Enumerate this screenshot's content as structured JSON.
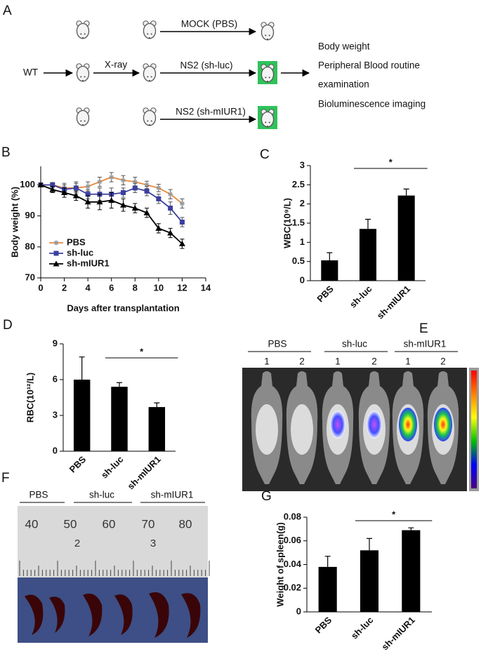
{
  "panel_labels": [
    "A",
    "B",
    "C",
    "D",
    "E",
    "F",
    "G"
  ],
  "diagram": {
    "start": "WT",
    "treatment": "X-ray",
    "groups": [
      "MOCK (PBS)",
      "NS2 (sh-luc)",
      "NS2 (sh-mIUR1)"
    ],
    "readouts": [
      "Body weight",
      "Peripheral Blood routine",
      "examination",
      "Bioluminescence imaging"
    ]
  },
  "imaging": {
    "groups": [
      {
        "label": "PBS",
        "mice": [
          "1",
          "2"
        ]
      },
      {
        "label": "sh-luc",
        "mice": [
          "1",
          "2"
        ]
      },
      {
        "label": "sh-mIUR1",
        "mice": [
          "1",
          "2"
        ]
      }
    ]
  },
  "spleen_photo": {
    "groups": [
      "PBS",
      "sh-luc",
      "sh-mIUR1"
    ],
    "ruler": [
      "40",
      "50",
      "60",
      "70",
      "80"
    ],
    "ruler_small": [
      "2",
      "3"
    ]
  },
  "chart_data": [
    {
      "type": "line",
      "ylabel": "Body weight (%)",
      "xlabel": "Days after transplantation",
      "x": [
        0,
        1,
        2,
        3,
        4,
        5,
        6,
        7,
        8,
        9,
        10,
        11,
        12
      ],
      "xlim": [
        0,
        14
      ],
      "xticks": [
        0,
        2,
        4,
        6,
        8,
        10,
        12,
        14
      ],
      "ylim": [
        70,
        106
      ],
      "yticks": [
        70,
        80,
        90,
        100
      ],
      "legend": "lower left",
      "grid": false,
      "series": [
        {
          "name": "PBS",
          "color": "#e8883a",
          "marker": "asterisk",
          "values": [
            100,
            100,
            99,
            99,
            99.5,
            101,
            102.5,
            101.5,
            101,
            100,
            99,
            97,
            94
          ],
          "errors": [
            0.5,
            0.8,
            1.5,
            1.5,
            1.5,
            1.5,
            1.5,
            1.5,
            1.5,
            1.2,
            1.2,
            1.5,
            1.5
          ]
        },
        {
          "name": "sh-luc",
          "color": "#3b3f9e",
          "marker": "square",
          "values": [
            100,
            100,
            98.5,
            99,
            97,
            97,
            97,
            97.5,
            99,
            98,
            95.5,
            92.5,
            88
          ],
          "errors": [
            0.5,
            0.8,
            1.5,
            2,
            1.5,
            2,
            2,
            1.5,
            1.5,
            1.5,
            1.5,
            2,
            1.5
          ]
        },
        {
          "name": "sh-mIUR1",
          "color": "#000000",
          "marker": "triangle",
          "values": [
            100,
            98.5,
            97.5,
            96.5,
            94.5,
            94.5,
            95,
            93.5,
            92.5,
            91,
            86,
            84.5,
            81
          ],
          "errors": [
            0.5,
            1,
            1.5,
            1.5,
            2,
            2.5,
            2.5,
            2,
            1.5,
            1.5,
            1.5,
            1.5,
            1.5
          ]
        }
      ]
    },
    {
      "type": "bar",
      "ylabel": "WBC(10⁹/L)",
      "categories": [
        "PBS",
        "sh-luc",
        "sh-mIUR1"
      ],
      "values": [
        0.53,
        1.35,
        2.22
      ],
      "errors": [
        0.2,
        0.25,
        0.17
      ],
      "color": "#000000",
      "ylim": [
        0,
        3
      ],
      "yticks": [
        0,
        0.5,
        1,
        1.5,
        2,
        2.5,
        3
      ],
      "significance": {
        "label": "*",
        "between": [
          "sh-luc",
          "sh-mIUR1"
        ]
      }
    },
    {
      "type": "bar",
      "ylabel": "RBC(10¹²/L)",
      "categories": [
        "PBS",
        "sh-luc",
        "sh-mIUR1"
      ],
      "values": [
        6.0,
        5.4,
        3.7
      ],
      "errors": [
        1.9,
        0.35,
        0.35
      ],
      "color": "#000000",
      "ylim": [
        0,
        9
      ],
      "yticks": [
        0,
        3,
        6,
        9
      ],
      "significance": {
        "label": "*",
        "between": [
          "sh-luc",
          "sh-mIUR1"
        ]
      }
    },
    {
      "type": "bar",
      "ylabel": "Weight of spleen(g)",
      "categories": [
        "PBS",
        "sh-luc",
        "sh-mIUR1"
      ],
      "values": [
        0.038,
        0.052,
        0.069
      ],
      "errors": [
        0.009,
        0.01,
        0.002
      ],
      "color": "#000000",
      "ylim": [
        0,
        0.08
      ],
      "yticks": [
        0,
        0.02,
        0.04,
        0.06,
        0.08
      ],
      "significance": {
        "label": "*",
        "between": [
          "sh-luc",
          "sh-mIUR1"
        ]
      }
    }
  ]
}
